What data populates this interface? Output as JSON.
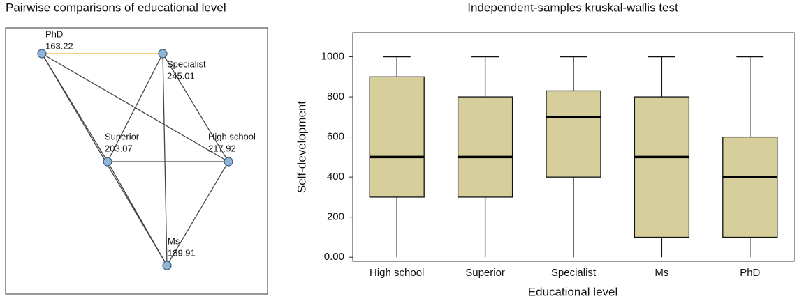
{
  "chart_data": [
    {
      "type": "network",
      "title": "Pairwise comparisons of educational level",
      "nodes": [
        {
          "label": "PhD",
          "value": 163.22
        },
        {
          "label": "Specialist",
          "value": 245.01
        },
        {
          "label": "Superior",
          "value": 203.07
        },
        {
          "label": "High school",
          "value": 217.92
        },
        {
          "label": "Ms",
          "value": 189.91
        }
      ],
      "node_color": "#8fb4d6",
      "edges": [
        {
          "from": "PhD",
          "to": "Specialist",
          "color": "#e8b83a"
        },
        {
          "from": "PhD",
          "to": "Superior",
          "color": "#444444"
        },
        {
          "from": "PhD",
          "to": "Ms",
          "color": "#444444"
        },
        {
          "from": "PhD",
          "to": "High school",
          "color": "#444444"
        },
        {
          "from": "Specialist",
          "to": "Superior",
          "color": "#444444"
        },
        {
          "from": "Specialist",
          "to": "Ms",
          "color": "#444444"
        },
        {
          "from": "Specialist",
          "to": "High school",
          "color": "#444444"
        },
        {
          "from": "Superior",
          "to": "High school",
          "color": "#444444"
        },
        {
          "from": "Superior",
          "to": "Ms",
          "color": "#444444"
        },
        {
          "from": "High school",
          "to": "Ms",
          "color": "#444444"
        }
      ]
    },
    {
      "type": "box",
      "title": "Independent-samples kruskal-wallis test",
      "xlabel": "Educational level",
      "ylabel": "Self-development",
      "categories": [
        "High school",
        "Superior",
        "Specialist",
        "Ms",
        "PhD"
      ],
      "color": "#d6cf9c",
      "boxes": [
        {
          "whislo": 0,
          "q1": 300,
          "med": 500,
          "q3": 900,
          "whishi": 1000
        },
        {
          "whislo": 0,
          "q1": 300,
          "med": 500,
          "q3": 800,
          "whishi": 1000
        },
        {
          "whislo": 0,
          "q1": 400,
          "med": 700,
          "q3": 830,
          "whishi": 1000
        },
        {
          "whislo": 0,
          "q1": 100,
          "med": 500,
          "q3": 800,
          "whishi": 1000
        },
        {
          "whislo": 0,
          "q1": 100,
          "med": 400,
          "q3": 600,
          "whishi": 1000
        }
      ],
      "ylim": [
        -20,
        1120
      ],
      "yticks": [
        {
          "value": 0,
          "label": "0.00"
        },
        200,
        400,
        600,
        800,
        1000
      ]
    }
  ]
}
